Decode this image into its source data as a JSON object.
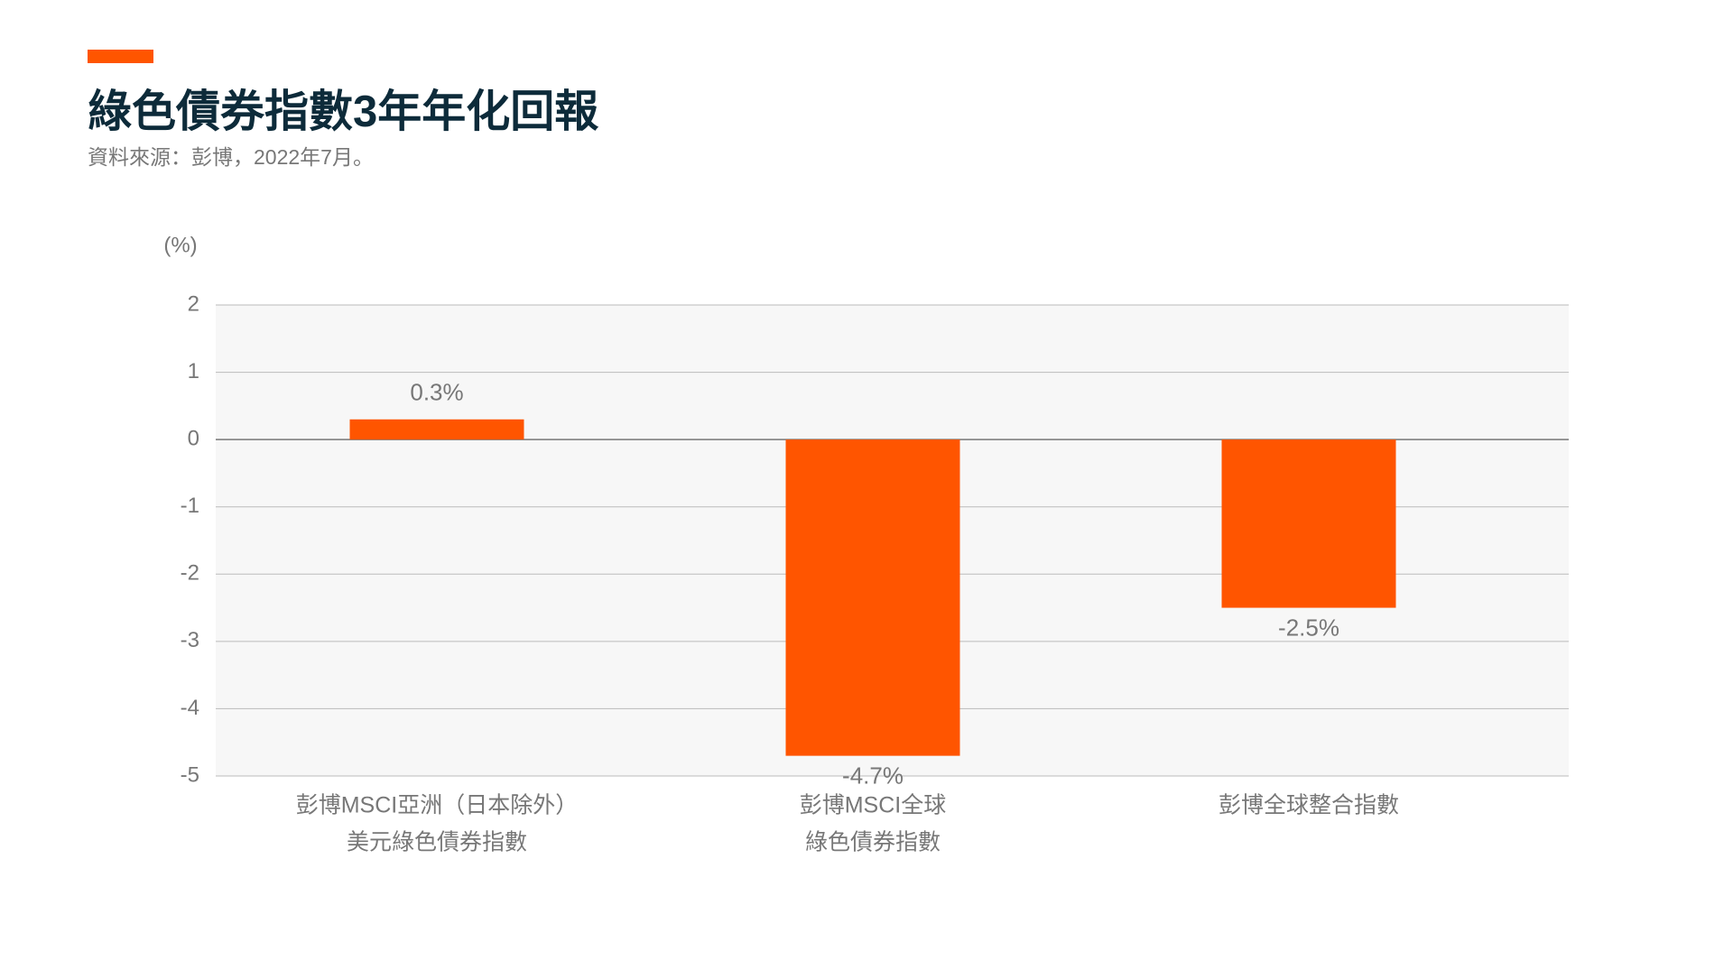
{
  "chart_data": {
    "type": "bar",
    "title": "綠色債券指數3年年化回報",
    "subtitle": "資料來源：彭博，2022年7月。",
    "ylabel": "(%)",
    "categories": [
      [
        "彭博MSCI亞洲（日本除外）",
        "美元綠色債券指數"
      ],
      [
        "彭博MSCI全球",
        "綠色債券指數"
      ],
      [
        "彭博全球整合指數"
      ]
    ],
    "values": [
      0.3,
      -4.7,
      -2.5
    ],
    "value_labels": [
      "0.3%",
      "-4.7%",
      "-2.5%"
    ],
    "color": "#ff5500",
    "ylim": [
      -5,
      2
    ],
    "yticks": [
      -5,
      -4,
      -3,
      -2,
      -1,
      0,
      1,
      2
    ],
    "grid": true
  }
}
